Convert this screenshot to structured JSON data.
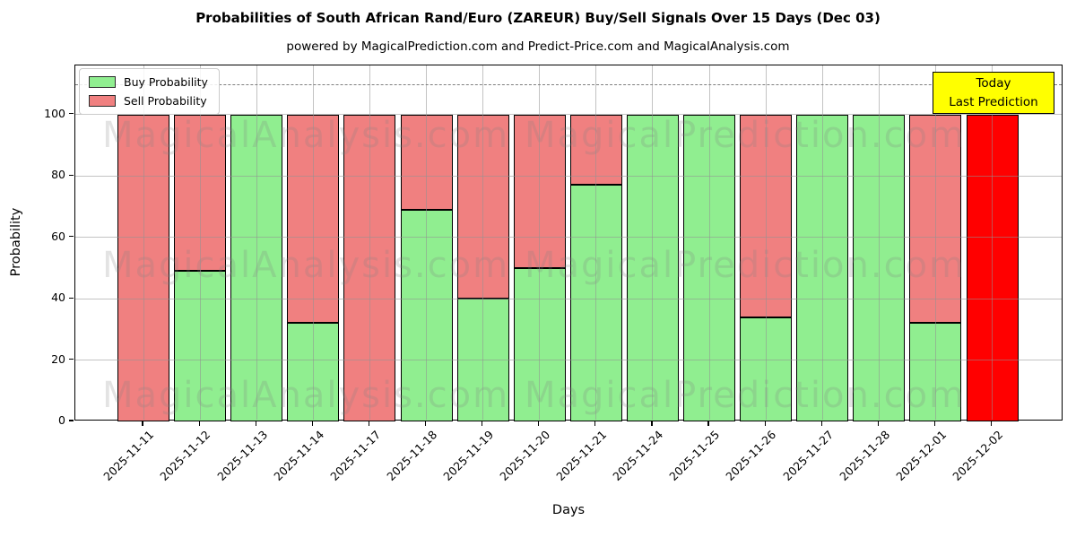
{
  "title": "Probabilities of South African Rand/Euro (ZAREUR) Buy/Sell Signals Over 15 Days (Dec 03)",
  "subtitle": "powered by MagicalPrediction.com and Predict-Price.com and MagicalAnalysis.com",
  "legend": {
    "buy_label": "Buy Probability",
    "sell_label": "Sell Probability"
  },
  "annotation": {
    "line1": "Today",
    "line2": "Last Prediction"
  },
  "axes": {
    "x_label": "Days",
    "y_label": "Probability",
    "y_ticks": [
      0,
      20,
      40,
      60,
      80,
      100
    ],
    "dashed_line_y": 110,
    "y_max": 116
  },
  "watermarks": [
    "MagicalAnalysis.com",
    "MagicalPrediction.com"
  ],
  "colors": {
    "buy": "#90ee90",
    "sell": "#f08080",
    "today_bar": "#ff0000",
    "bar_edge": "#000000",
    "annotation_bg": "#ffff00",
    "grid": "#919191",
    "dashed": "#7f7f7f"
  },
  "chart_data": {
    "type": "bar",
    "stacked": true,
    "title": "Probabilities of South African Rand/Euro (ZAREUR) Buy/Sell Signals Over 15 Days (Dec 03)",
    "xlabel": "Days",
    "ylabel": "Probability",
    "ylim": [
      0,
      116
    ],
    "grid": true,
    "legend_position": "upper left",
    "categories": [
      "2025-11-11",
      "2025-11-12",
      "2025-11-13",
      "2025-11-14",
      "2025-11-17",
      "2025-11-18",
      "2025-11-19",
      "2025-11-20",
      "2025-11-21",
      "2025-11-24",
      "2025-11-25",
      "2025-11-26",
      "2025-11-27",
      "2025-11-28",
      "2025-12-01",
      "2025-12-02"
    ],
    "series": [
      {
        "name": "Buy Probability",
        "color": "#90ee90",
        "values": [
          0,
          49,
          100,
          32,
          0,
          69,
          40,
          50,
          77,
          100,
          100,
          34,
          100,
          100,
          32,
          0
        ]
      },
      {
        "name": "Sell Probability",
        "color": "#f08080",
        "values": [
          100,
          51,
          0,
          68,
          100,
          31,
          60,
          50,
          23,
          0,
          0,
          66,
          0,
          0,
          68,
          100
        ]
      }
    ],
    "highlight_last": {
      "index": 15,
      "color": "#ff0000",
      "annotation": "Today Last Prediction"
    },
    "dashed_reference_line_y": 110
  }
}
